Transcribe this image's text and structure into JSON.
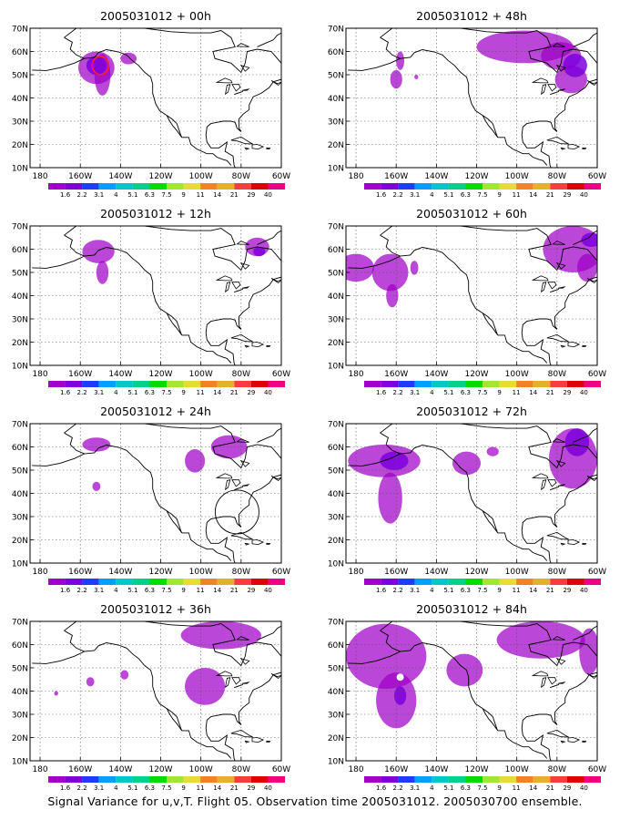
{
  "caption": "Signal Variance for u,v,T. Flight 05. Observation time 2005031012. 2005030700 ensemble.",
  "colorbar": {
    "labels": [
      "1.6",
      "2.2",
      "3.1",
      "4",
      "5.1",
      "6.3",
      "7.5",
      "9",
      "11",
      "14",
      "21",
      "29",
      "40"
    ],
    "colors": [
      "#a000c8",
      "#7d00dc",
      "#1e3cff",
      "#00a0ff",
      "#00c8c8",
      "#00d28c",
      "#00dc00",
      "#a0e632",
      "#e6dc32",
      "#f08228",
      "#e6af2d",
      "#fa3c3c",
      "#e00000",
      "#f00082"
    ]
  },
  "axes": {
    "x_ticks": [
      "180",
      "160W",
      "140W",
      "120W",
      "100W",
      "80W",
      "60W"
    ],
    "y_ticks": [
      "10N",
      "20N",
      "30N",
      "40N",
      "50N",
      "60N",
      "70N"
    ],
    "lon_range": [
      -185,
      -60
    ],
    "lat_range": [
      10,
      70
    ]
  },
  "panels": [
    {
      "title": "2005031012 + 00h"
    },
    {
      "title": "2005031012 + 48h"
    },
    {
      "title": "2005031012 + 12h"
    },
    {
      "title": "2005031012 + 60h"
    },
    {
      "title": "2005031012 + 24h"
    },
    {
      "title": "2005031012 + 72h"
    },
    {
      "title": "2005031012 + 36h"
    },
    {
      "title": "2005031012 + 84h"
    }
  ]
}
